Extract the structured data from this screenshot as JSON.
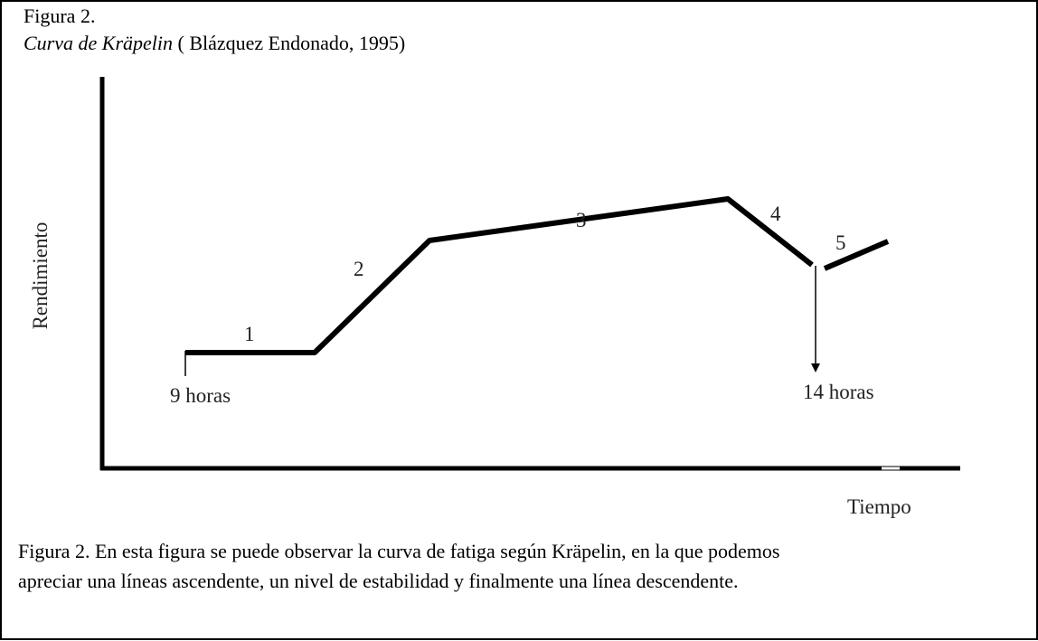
{
  "figure_label": "Figura 2.",
  "title_italic": "Curva de Kräpelin",
  "title_rest": "( Blázquez Endonado, 1995)",
  "y_axis_label": "Rendimiento",
  "x_axis_label": "Tiempo",
  "phases": [
    "1",
    "2",
    "3",
    "4",
    "5"
  ],
  "start_label": "9 horas",
  "end_label": "14 horas",
  "caption": [
    "Figura 2. En esta figura se puede observar la curva de fatiga según Kräpelin, en la que podemos",
    "apreciar una líneas ascendente, un nivel de estabilidad y finalmente una línea descendente."
  ]
}
